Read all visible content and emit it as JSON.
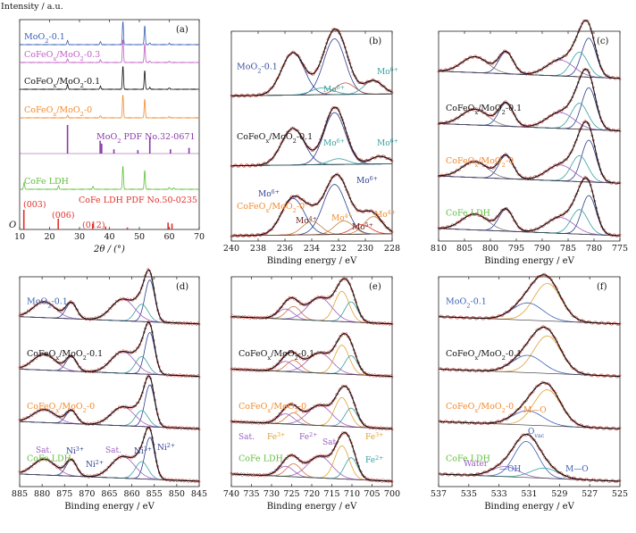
{
  "figure": {
    "y_axis_label": "Intensity / a.u."
  },
  "chart_data": [
    {
      "panel": "(a)",
      "type": "line",
      "xlabel": "2θ / (°)",
      "ylabel": "Intensity / a.u.",
      "xlim": [
        10,
        70
      ],
      "xticks": [
        "10",
        "20",
        "30",
        "40",
        "50",
        "60",
        "70"
      ],
      "origin_label": "O",
      "series": [
        {
          "name": "MoO₂-0.1",
          "color": "#3a5fb5",
          "baseline": 1.0,
          "peaks": [
            [
              26.0,
              0.35
            ],
            [
              37.0,
              0.25
            ],
            [
              44.5,
              1.9
            ],
            [
              51.8,
              1.55
            ],
            [
              53.5,
              0.15
            ],
            [
              60.0,
              0.12
            ]
          ]
        },
        {
          "name": "CoFeOx/MoO₂-0.3",
          "color": "#c05dc5",
          "baseline": 1.0,
          "peaks": [
            [
              26.0,
              0.3
            ],
            [
              37.0,
              0.22
            ],
            [
              44.5,
              1.9
            ],
            [
              51.8,
              1.55
            ],
            [
              53.5,
              0.12
            ],
            [
              60.0,
              0.1
            ]
          ]
        },
        {
          "name": "CoFeOx/MoO₂-0.1",
          "color": "#111111",
          "baseline": 1.0,
          "peaks": [
            [
              26.0,
              0.4
            ],
            [
              37.0,
              0.25
            ],
            [
              44.5,
              1.9
            ],
            [
              51.8,
              1.55
            ],
            [
              53.5,
              0.15
            ],
            [
              60.0,
              0.12
            ]
          ]
        },
        {
          "name": "CoFeOx/MoO₂-0",
          "color": "#f28a2e",
          "baseline": 1.0,
          "peaks": [
            [
              26.0,
              0.2
            ],
            [
              37.0,
              0.18
            ],
            [
              44.5,
              1.9
            ],
            [
              51.8,
              1.55
            ],
            [
              60.0,
              0.1
            ]
          ]
        },
        {
          "name": "CoFe LDH",
          "color": "#5fbf3a",
          "baseline": 1.0,
          "peaks": [
            [
              11.5,
              0.55
            ],
            [
              23.0,
              0.3
            ],
            [
              34.5,
              0.25
            ],
            [
              44.5,
              1.9
            ],
            [
              51.8,
              1.55
            ],
            [
              60.0,
              0.15
            ],
            [
              61.5,
              0.12
            ]
          ]
        }
      ],
      "references": [
        {
          "name": "MoO₂ PDF No.32-0671",
          "color": "#8a3aa8",
          "sticks": [
            [
              26.0,
              1.0
            ],
            [
              36.9,
              0.45
            ],
            [
              37.4,
              0.35
            ],
            [
              41.5,
              0.15
            ],
            [
              49.5,
              0.12
            ],
            [
              53.5,
              0.55
            ],
            [
              60.4,
              0.15
            ],
            [
              66.6,
              0.2
            ]
          ]
        },
        {
          "name": "CoFe LDH PDF No.50-0235",
          "color": "#e0302a",
          "sticks": [
            [
              11.4,
              1.0
            ],
            [
              22.9,
              0.55
            ],
            [
              34.4,
              0.3
            ],
            [
              38.7,
              0.15
            ],
            [
              46.0,
              0.1
            ],
            [
              59.6,
              0.35
            ],
            [
              60.9,
              0.3
            ]
          ]
        }
      ],
      "reference_labels": [
        "(003)",
        "(006)",
        "(012)"
      ]
    },
    {
      "panel": "(b)",
      "type": "line",
      "xlabel": "Binding energy / eV",
      "xlim": [
        240,
        228
      ],
      "xticks": [
        "240",
        "238",
        "236",
        "234",
        "232",
        "230",
        "228"
      ],
      "peak_labels": [
        "Mo6+",
        "Mo6+",
        "Mo6+",
        "Mo6+",
        "Mo4+",
        "Mo4+",
        "Mo5+",
        "Mo4+"
      ],
      "spectra": [
        {
          "name": "MoO₂-0.1",
          "name_color": "#3a4fa0",
          "components": [
            [
              235.4,
              1.1,
              0.85,
              "#2c3f8f"
            ],
            [
              232.3,
              1.45,
              0.8,
              "#2c3f8f"
            ],
            [
              233.2,
              0.18,
              0.8,
              "#35a0a0"
            ],
            [
              231.5,
              0.3,
              0.7,
              "#c05040"
            ],
            [
              229.4,
              0.35,
              0.7,
              "#35a0a0"
            ]
          ]
        },
        {
          "name": "CoFeOx/MoO₂-0.1",
          "name_color": "#111111",
          "components": [
            [
              235.4,
              0.95,
              0.85,
              "#2c3f8f"
            ],
            [
              232.3,
              1.35,
              0.8,
              "#2c3f8f"
            ],
            [
              232.0,
              0.15,
              0.7,
              "#35a0a0"
            ],
            [
              228.9,
              0.2,
              0.7,
              "#35a0a0"
            ]
          ]
        },
        {
          "name": "CoFeOx/MoO₂-0",
          "name_color": "#f28a2e",
          "components": [
            [
              235.4,
              0.95,
              0.85,
              "#2c3f8f"
            ],
            [
              232.3,
              1.3,
              0.85,
              "#2c3f8f"
            ],
            [
              234.0,
              0.35,
              0.7,
              "#c08040"
            ],
            [
              231.6,
              0.35,
              0.7,
              "#c08040"
            ],
            [
              230.3,
              0.25,
              0.7,
              "#e0302a"
            ],
            [
              229.4,
              0.45,
              0.7,
              "#c08040"
            ]
          ]
        }
      ]
    },
    {
      "panel": "(c)",
      "type": "line",
      "xlabel": "Binding energy / eV",
      "xlim": [
        810,
        775
      ],
      "xticks": [
        "810",
        "805",
        "800",
        "795",
        "790",
        "785",
        "780",
        "775"
      ],
      "spectra": [
        {
          "name": "",
          "name_color": "#111111",
          "components": [
            [
              797.0,
              0.75,
              1.4,
              "#2c3f8f"
            ],
            [
              803.0,
              0.55,
              2.5,
              "#7a7a7a"
            ],
            [
              781.0,
              1.35,
              1.4,
              "#2c3f8f"
            ],
            [
              782.8,
              0.85,
              1.6,
              "#35a0a0"
            ],
            [
              786.5,
              0.55,
              2.6,
              "#9a5fc0"
            ]
          ]
        },
        {
          "name": "CoFeOx/MoO₂-0.1",
          "name_color": "#111111",
          "components": [
            [
              797.0,
              0.8,
              1.4,
              "#2c3f8f"
            ],
            [
              803.0,
              0.55,
              2.5,
              "#7a7a7a"
            ],
            [
              781.0,
              1.45,
              1.4,
              "#2c3f8f"
            ],
            [
              782.8,
              0.9,
              1.6,
              "#35a0a0"
            ],
            [
              786.5,
              0.55,
              2.6,
              "#9a5fc0"
            ]
          ]
        },
        {
          "name": "CoFeOx/MoO₂-0",
          "name_color": "#f28a2e",
          "components": [
            [
              797.0,
              0.8,
              1.4,
              "#2c3f8f"
            ],
            [
              803.0,
              0.55,
              2.5,
              "#7a7a7a"
            ],
            [
              781.0,
              1.45,
              1.4,
              "#2c3f8f"
            ],
            [
              782.8,
              0.9,
              1.6,
              "#35a0a0"
            ],
            [
              786.5,
              0.55,
              2.6,
              "#9a5fc0"
            ]
          ]
        },
        {
          "name": "CoFe LDH",
          "name_color": "#5fbf3a",
          "components": [
            [
              797.0,
              0.75,
              1.4,
              "#2c3f8f"
            ],
            [
              803.0,
              0.55,
              2.5,
              "#7a7a7a"
            ],
            [
              781.0,
              1.35,
              1.4,
              "#2c3f8f"
            ],
            [
              782.8,
              0.85,
              1.6,
              "#35a0a0"
            ],
            [
              786.5,
              0.55,
              2.6,
              "#9a5fc0"
            ]
          ]
        }
      ]
    },
    {
      "panel": "(d)",
      "type": "line",
      "xlabel": "Binding energy / eV",
      "xlim": [
        885,
        845
      ],
      "xticks": [
        "885",
        "880",
        "875",
        "870",
        "865",
        "860",
        "855",
        "850",
        "845"
      ],
      "peak_labels": [
        "Sat.",
        "Ni3+",
        "Ni2+",
        "Sat.",
        "Ni3+",
        "Ni2+"
      ],
      "spectra": [
        {
          "name": "MoO₂-0.1",
          "name_color": "#3a5fb5",
          "components": [
            [
              873.5,
              0.55,
              1.2,
              "#2c3f8f"
            ],
            [
              879.5,
              0.55,
              2.5,
              "#9a5fc0"
            ],
            [
              856.0,
              1.45,
              1.1,
              "#2c3f8f"
            ],
            [
              857.8,
              0.6,
              1.4,
              "#35a0a0"
            ],
            [
              862.0,
              0.75,
              2.6,
              "#9a5fc0"
            ]
          ]
        },
        {
          "name": "CoFeOx/MoO₂-0.1",
          "name_color": "#111111",
          "components": [
            [
              873.5,
              0.5,
              1.2,
              "#2c3f8f"
            ],
            [
              879.5,
              0.55,
              2.5,
              "#9a5fc0"
            ],
            [
              856.0,
              1.45,
              1.1,
              "#2c3f8f"
            ],
            [
              857.8,
              0.6,
              1.4,
              "#35a0a0"
            ],
            [
              862.0,
              0.75,
              2.6,
              "#9a5fc0"
            ]
          ]
        },
        {
          "name": "CoFeOx/MoO₂-0",
          "name_color": "#f28a2e",
          "components": [
            [
              873.5,
              0.45,
              1.2,
              "#2c3f8f"
            ],
            [
              879.5,
              0.45,
              2.5,
              "#9a5fc0"
            ],
            [
              856.0,
              1.45,
              1.1,
              "#2c3f8f"
            ],
            [
              857.8,
              0.55,
              1.4,
              "#35a0a0"
            ],
            [
              862.0,
              0.65,
              2.6,
              "#9a5fc0"
            ]
          ]
        },
        {
          "name": "CoFe LDH",
          "name_color": "#5fbf3a",
          "components": [
            [
              873.5,
              0.55,
              1.2,
              "#2c3f8f"
            ],
            [
              879.5,
              0.55,
              2.5,
              "#9a5fc0"
            ],
            [
              856.0,
              1.45,
              1.1,
              "#2c3f8f"
            ],
            [
              857.8,
              0.6,
              1.4,
              "#35a0a0"
            ],
            [
              862.0,
              0.75,
              2.6,
              "#9a5fc0"
            ]
          ]
        }
      ]
    },
    {
      "panel": "(e)",
      "type": "line",
      "xlabel": "Binding energy / eV",
      "xlim": [
        740,
        700
      ],
      "xticks": [
        "740",
        "735",
        "730",
        "725",
        "720",
        "715",
        "710",
        "705",
        "700"
      ],
      "peak_labels": [
        "Sat.",
        "Fe3+",
        "Fe2+",
        "Sat.",
        "Fe3+",
        "Fe2+"
      ],
      "spectra": [
        {
          "name": "",
          "name_color": "#111111",
          "components": [
            [
              724.5,
              0.45,
              1.8,
              "#d07040"
            ],
            [
              726.5,
              0.35,
              2.0,
              "#9a5fc0"
            ],
            [
              718.0,
              0.8,
              3.0,
              "#9a5fc0"
            ],
            [
              712.5,
              1.05,
              1.8,
              "#e0a030"
            ],
            [
              710.2,
              0.7,
              1.6,
              "#35a0a0"
            ]
          ]
        },
        {
          "name": "CoFeOx/MoO₂-0.1",
          "name_color": "#111111",
          "components": [
            [
              724.5,
              0.4,
              1.8,
              "#d07040"
            ],
            [
              726.5,
              0.35,
              2.0,
              "#9a5fc0"
            ],
            [
              718.0,
              0.7,
              3.0,
              "#9a5fc0"
            ],
            [
              712.5,
              1.0,
              1.8,
              "#e0a030"
            ],
            [
              710.2,
              0.65,
              1.6,
              "#35a0a0"
            ]
          ]
        },
        {
          "name": "CoFeOx/MoO₂-0",
          "name_color": "#f28a2e",
          "components": [
            [
              724.5,
              0.4,
              1.8,
              "#d07040"
            ],
            [
              726.5,
              0.35,
              2.0,
              "#9a5fc0"
            ],
            [
              718.0,
              0.7,
              3.0,
              "#9a5fc0"
            ],
            [
              712.5,
              1.0,
              1.8,
              "#e0a030"
            ],
            [
              710.2,
              0.65,
              1.6,
              "#35a0a0"
            ]
          ]
        },
        {
          "name": "CoFe LDH",
          "name_color": "#5fbf3a",
          "components": [
            [
              724.5,
              0.45,
              1.8,
              "#d07040"
            ],
            [
              726.5,
              0.35,
              2.0,
              "#9a5fc0"
            ],
            [
              718.0,
              0.75,
              3.0,
              "#9a5fc0"
            ],
            [
              712.5,
              1.15,
              1.8,
              "#e0a030"
            ],
            [
              710.2,
              0.75,
              1.6,
              "#35a0a0"
            ]
          ]
        }
      ]
    },
    {
      "panel": "(f)",
      "type": "line",
      "xlabel": "Binding energy / eV",
      "xlim": [
        537,
        525
      ],
      "xticks": [
        "537",
        "535",
        "533",
        "531",
        "529",
        "527",
        "525"
      ],
      "peak_labels": [
        "M—O",
        "Ovac",
        "Water",
        "—OH",
        "M—O"
      ],
      "spectra": [
        {
          "name": "MoO₂-0.1",
          "name_color": "#3a5fb5",
          "components": [
            [
              529.8,
              1.3,
              0.9,
              "#e0a030"
            ],
            [
              531.1,
              0.6,
              1.0,
              "#3a5fb5"
            ]
          ]
        },
        {
          "name": "CoFeOx/MoO₂-0.1",
          "name_color": "#111111",
          "components": [
            [
              529.8,
              1.3,
              0.9,
              "#e0a030"
            ],
            [
              531.1,
              0.6,
              1.0,
              "#3a5fb5"
            ]
          ]
        },
        {
          "name": "CoFeOx/MoO₂-0",
          "name_color": "#f28a2e",
          "components": [
            [
              529.8,
              1.25,
              0.9,
              "#e0a030"
            ],
            [
              531.1,
              0.5,
              1.0,
              "#3a5fb5"
            ]
          ]
        },
        {
          "name": "CoFe LDH",
          "name_color": "#5fbf3a",
          "components": [
            [
              531.2,
              1.25,
              0.8,
              "#3a5fb5"
            ],
            [
              532.6,
              0.35,
              0.9,
              "#9a5fc0"
            ],
            [
              530.0,
              0.35,
              0.9,
              "#35a0a0"
            ]
          ]
        }
      ]
    }
  ]
}
